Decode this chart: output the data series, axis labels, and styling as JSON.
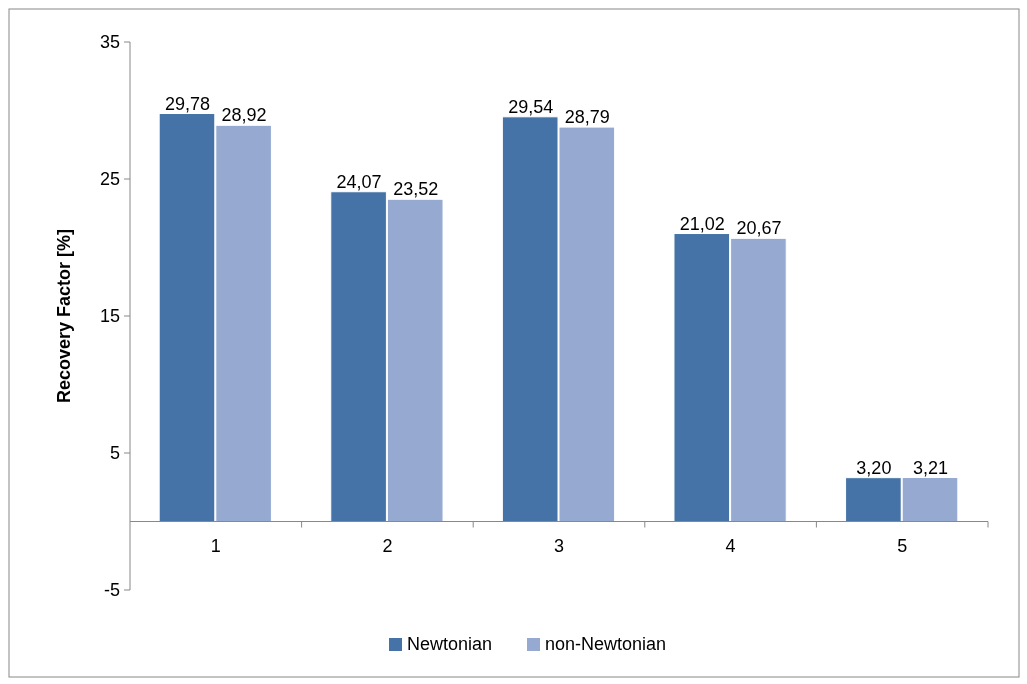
{
  "chart_data": {
    "type": "bar",
    "ylabel": "Recovery Factor  [%]",
    "categories": [
      "1",
      "2",
      "3",
      "4",
      "5"
    ],
    "series": [
      {
        "name": "Newtonian",
        "color": "#4573a7",
        "values": [
          29.78,
          24.07,
          29.54,
          21.02,
          3.2
        ],
        "value_labels": [
          "29,78",
          "24,07",
          "29,54",
          "21,02",
          "3,20"
        ]
      },
      {
        "name": "non-Newtonian",
        "color": "#95a9d1",
        "values": [
          28.92,
          23.52,
          28.79,
          20.67,
          3.21
        ],
        "value_labels": [
          "28,92",
          "23,52",
          "28,79",
          "20,67",
          "3,21"
        ]
      }
    ],
    "ylim": [
      -5,
      35
    ],
    "yticks": [
      -5,
      5,
      15,
      25,
      35
    ],
    "grid": false,
    "legend": "bottom"
  }
}
